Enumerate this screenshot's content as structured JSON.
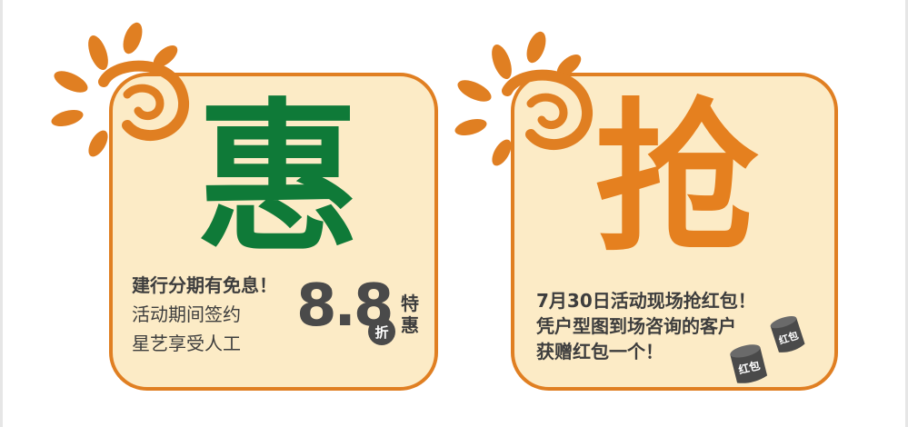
{
  "colors": {
    "accent_orange": "#e07f22",
    "card_fill": "#fcebc6",
    "hui_green": "#0f7a38",
    "qiang_orange": "#e5801f",
    "text_dark": "#3d3d3d",
    "badge_dark": "#4a4a4a"
  },
  "icons": [
    "sun-icon",
    "red-envelope-icon"
  ],
  "left_card": {
    "big_char": "惠",
    "line1": "建行分期有免息！",
    "line2": "活动期间签约",
    "line3": "星艺享受人工",
    "discount_number": "8.8",
    "discount_unit": "折",
    "special_char1": "特",
    "special_char2": "惠"
  },
  "right_card": {
    "big_char": "抢",
    "line1": "7月30日活动现场抢红包！",
    "line2": "凭户型图到场咨询的客户",
    "line3": "获赠红包一个！",
    "envelope_label": "红包"
  }
}
